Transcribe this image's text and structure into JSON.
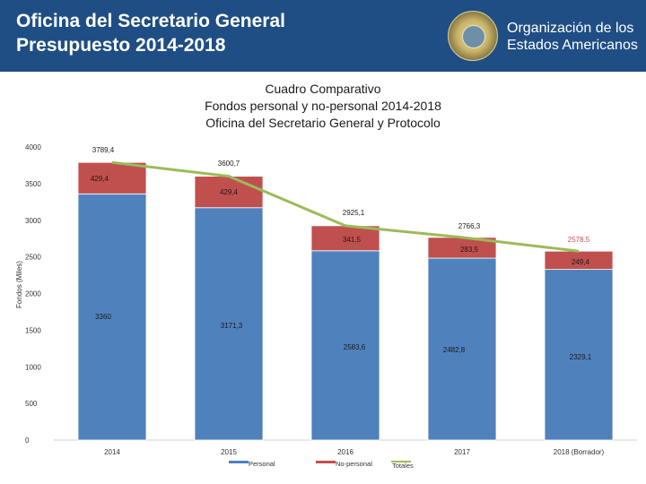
{
  "header": {
    "title_line1": "Oficina del Secretario General",
    "title_line2": "Presupuesto 2014-2018",
    "org_line1": "Organización de los",
    "org_line2": "Estados Americanos"
  },
  "colors": {
    "header_bg": "#1f4e84",
    "personal": "#4f81bd",
    "no_personal": "#c0504d",
    "totales": "#9bbb59"
  },
  "chart_data": {
    "type": "bar",
    "stacked": true,
    "title_lines": [
      "Cuadro Comparativo",
      "Fondos personal y no-personal 2014-2018",
      "Oficina del Secretario General y Protocolo"
    ],
    "ylabel": "Fondos (Miles)",
    "xlabel": "",
    "ylim": [
      0,
      4000
    ],
    "yticks": [
      0,
      500,
      1000,
      1500,
      2000,
      2500,
      3000,
      3500,
      4000
    ],
    "categories": [
      "2014",
      "2015",
      "2016",
      "2017",
      "2018 (Borrador)"
    ],
    "series": [
      {
        "name": "Personal",
        "values": [
          3360,
          3171.3,
          2583.6,
          2482.8,
          2329.1
        ],
        "labels": [
          "3360",
          "3171,3",
          "2583,6",
          "2482,8",
          "2329,1"
        ]
      },
      {
        "name": "No-personal",
        "values": [
          429.4,
          429.4,
          341.5,
          283.5,
          249.4
        ],
        "labels": [
          "429,4",
          "429,4",
          "341,5",
          "283,5",
          "249,4"
        ]
      },
      {
        "name": "Totales",
        "type": "line",
        "values": [
          3789.4,
          3600.7,
          2925.1,
          2766.3,
          2578.5
        ],
        "labels": [
          "3789,4",
          "3600,7",
          "2925,1",
          "2766,3",
          "2578.5"
        ]
      }
    ],
    "legend": {
      "placement": "bottom",
      "items": [
        "Personal",
        "No-personal",
        "Totales"
      ]
    }
  }
}
